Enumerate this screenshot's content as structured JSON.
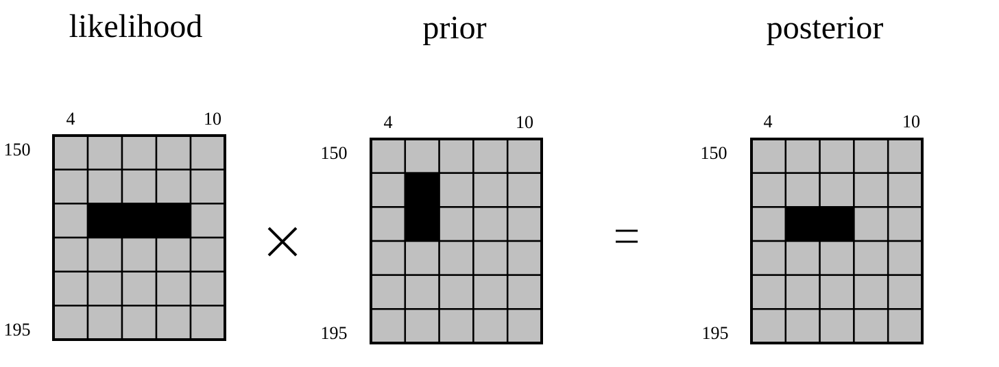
{
  "grid_rows": 6,
  "grid_cols": 5,
  "colors": {
    "cell_fill": "#c0c0c0",
    "cell_on": "#000000",
    "line": "#000000",
    "background": "#ffffff"
  },
  "panels": [
    {
      "title": "likelihood",
      "col_start_label": "4",
      "col_end_label": "10",
      "row_start_label": "150",
      "row_end_label": "195",
      "filled_cells": [
        [
          2,
          1
        ],
        [
          2,
          2
        ],
        [
          2,
          3
        ]
      ]
    },
    {
      "title": "prior",
      "col_start_label": "4",
      "col_end_label": "10",
      "row_start_label": "150",
      "row_end_label": "195",
      "filled_cells": [
        [
          1,
          1
        ],
        [
          2,
          1
        ]
      ]
    },
    {
      "title": "posterior",
      "col_start_label": "4",
      "col_end_label": "10",
      "row_start_label": "150",
      "row_end_label": "195",
      "filled_cells": [
        [
          2,
          1
        ],
        [
          2,
          2
        ]
      ]
    }
  ],
  "operators": {
    "multiply": "×",
    "equals": "="
  }
}
